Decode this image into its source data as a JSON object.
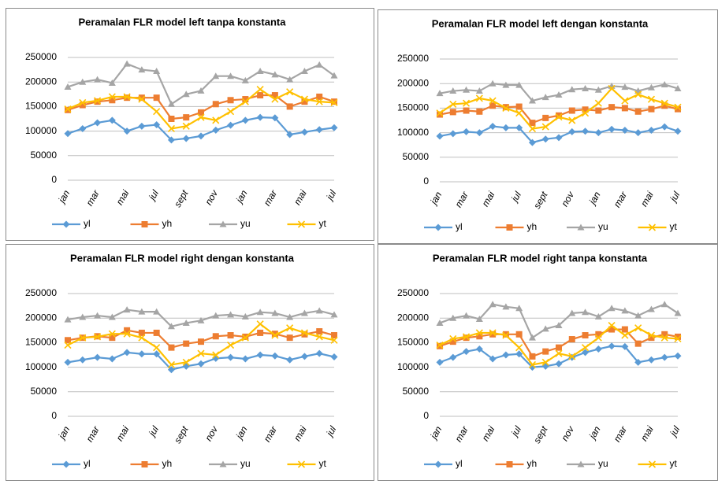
{
  "chart_data": [
    {
      "type": "line",
      "title": "Peramalan FLR model left tanpa konstanta",
      "categories": [
        "jan",
        null,
        "mar",
        null,
        "mai",
        null,
        "jul",
        null,
        "sept",
        null,
        "nov",
        null,
        "jan",
        null,
        "mar",
        null,
        "mai",
        null,
        "jul"
      ],
      "ylim": [
        0,
        250000
      ],
      "yticks": [
        0,
        50000,
        100000,
        150000,
        200000,
        250000
      ],
      "grid": true,
      "series": [
        {
          "name": "yl",
          "color": "#5b9bd5",
          "marker": "diamond",
          "values": [
            95000,
            105000,
            117000,
            122000,
            100000,
            110000,
            113000,
            82000,
            85000,
            90000,
            102000,
            112000,
            122000,
            128000,
            127000,
            93000,
            98000,
            103000,
            107000
          ]
        },
        {
          "name": "yh",
          "color": "#ed7d31",
          "marker": "square",
          "values": [
            143000,
            153000,
            160000,
            163000,
            168000,
            168000,
            168000,
            125000,
            128000,
            138000,
            155000,
            163000,
            165000,
            173000,
            173000,
            150000,
            160000,
            170000,
            160000
          ]
        },
        {
          "name": "yu",
          "color": "#a5a5a5",
          "marker": "triangle",
          "values": [
            190000,
            200000,
            205000,
            198000,
            237000,
            225000,
            222000,
            155000,
            175000,
            182000,
            212000,
            212000,
            203000,
            222000,
            215000,
            205000,
            222000,
            235000,
            213000
          ]
        },
        {
          "name": "yt",
          "color": "#ffc000",
          "marker": "cross",
          "values": [
            145000,
            158000,
            162000,
            170000,
            170000,
            165000,
            140000,
            105000,
            110000,
            128000,
            122000,
            140000,
            160000,
            185000,
            165000,
            180000,
            165000,
            160000,
            158000
          ]
        }
      ]
    },
    {
      "type": "line",
      "title": "Peramalan FLR model left dengan konstanta",
      "categories": [
        "jan",
        null,
        "mar",
        null,
        "mai",
        null,
        "jul",
        null,
        "sept",
        null,
        "nov",
        null,
        "jan",
        null,
        "mar",
        null,
        "mai",
        null,
        "jul"
      ],
      "ylim": [
        0,
        250000
      ],
      "yticks": [
        0,
        50000,
        100000,
        150000,
        200000,
        250000
      ],
      "grid": true,
      "series": [
        {
          "name": "yl",
          "color": "#5b9bd5",
          "marker": "diamond",
          "values": [
            93000,
            98000,
            102000,
            100000,
            113000,
            110000,
            110000,
            80000,
            87000,
            90000,
            102000,
            103000,
            100000,
            107000,
            105000,
            100000,
            105000,
            112000,
            103000
          ]
        },
        {
          "name": "yh",
          "color": "#ed7d31",
          "marker": "square",
          "values": [
            137000,
            142000,
            145000,
            143000,
            155000,
            152000,
            153000,
            120000,
            130000,
            135000,
            145000,
            147000,
            145000,
            152000,
            150000,
            143000,
            148000,
            155000,
            148000
          ]
        },
        {
          "name": "yu",
          "color": "#a5a5a5",
          "marker": "triangle",
          "values": [
            180000,
            185000,
            187000,
            185000,
            200000,
            197000,
            197000,
            165000,
            172000,
            177000,
            188000,
            190000,
            187000,
            195000,
            193000,
            185000,
            192000,
            198000,
            190000
          ]
        },
        {
          "name": "yt",
          "color": "#ffc000",
          "marker": "cross",
          "values": [
            140000,
            158000,
            160000,
            170000,
            165000,
            150000,
            140000,
            108000,
            112000,
            132000,
            125000,
            140000,
            160000,
            190000,
            165000,
            178000,
            168000,
            160000,
            152000
          ]
        }
      ]
    },
    {
      "type": "line",
      "title": "Peramalan FLR model right dengan konstanta",
      "categories": [
        "jan",
        null,
        "mar",
        null,
        "mai",
        null,
        "jul",
        null,
        "sept",
        null,
        "nov",
        null,
        "jan",
        null,
        "mar",
        null,
        "mai",
        null,
        "jul"
      ],
      "ylim": [
        0,
        250000
      ],
      "yticks": [
        0,
        50000,
        100000,
        150000,
        200000,
        250000
      ],
      "grid": true,
      "series": [
        {
          "name": "yl",
          "color": "#5b9bd5",
          "marker": "diamond",
          "values": [
            110000,
            115000,
            120000,
            117000,
            130000,
            127000,
            127000,
            95000,
            102000,
            107000,
            118000,
            120000,
            117000,
            125000,
            123000,
            115000,
            122000,
            128000,
            121000
          ]
        },
        {
          "name": "yh",
          "color": "#ed7d31",
          "marker": "square",
          "values": [
            155000,
            160000,
            163000,
            160000,
            175000,
            170000,
            170000,
            140000,
            148000,
            152000,
            163000,
            165000,
            162000,
            170000,
            168000,
            160000,
            167000,
            173000,
            165000
          ]
        },
        {
          "name": "yu",
          "color": "#a5a5a5",
          "marker": "triangle",
          "values": [
            197000,
            202000,
            205000,
            202000,
            217000,
            213000,
            213000,
            183000,
            190000,
            195000,
            205000,
            207000,
            203000,
            212000,
            210000,
            202000,
            210000,
            215000,
            207000
          ]
        },
        {
          "name": "yt",
          "color": "#ffc000",
          "marker": "cross",
          "values": [
            145000,
            160000,
            162000,
            168000,
            168000,
            160000,
            140000,
            105000,
            110000,
            128000,
            125000,
            145000,
            160000,
            188000,
            165000,
            180000,
            170000,
            162000,
            155000
          ]
        }
      ]
    },
    {
      "type": "line",
      "title": "Peramalan FLR model right tanpa konstanta",
      "categories": [
        "jan",
        null,
        "mar",
        null,
        "mai",
        null,
        "jul",
        null,
        "sept",
        null,
        "nov",
        null,
        "jan",
        null,
        "mar",
        null,
        "mai",
        null,
        "jul"
      ],
      "ylim": [
        0,
        250000
      ],
      "yticks": [
        0,
        50000,
        100000,
        150000,
        200000,
        250000
      ],
      "grid": true,
      "series": [
        {
          "name": "yl",
          "color": "#5b9bd5",
          "marker": "diamond",
          "values": [
            110000,
            120000,
            132000,
            137000,
            117000,
            125000,
            127000,
            100000,
            102000,
            107000,
            120000,
            130000,
            137000,
            143000,
            142000,
            110000,
            115000,
            120000,
            123000
          ]
        },
        {
          "name": "yh",
          "color": "#ed7d31",
          "marker": "square",
          "values": [
            143000,
            152000,
            160000,
            163000,
            167000,
            167000,
            167000,
            122000,
            132000,
            140000,
            157000,
            165000,
            167000,
            177000,
            177000,
            148000,
            160000,
            167000,
            162000
          ]
        },
        {
          "name": "yu",
          "color": "#a5a5a5",
          "marker": "triangle",
          "values": [
            190000,
            200000,
            205000,
            198000,
            228000,
            223000,
            220000,
            160000,
            178000,
            185000,
            210000,
            212000,
            203000,
            220000,
            215000,
            205000,
            218000,
            228000,
            210000
          ]
        },
        {
          "name": "yt",
          "color": "#ffc000",
          "marker": "cross",
          "values": [
            145000,
            158000,
            162000,
            170000,
            170000,
            165000,
            140000,
            105000,
            110000,
            128000,
            122000,
            140000,
            160000,
            185000,
            165000,
            180000,
            165000,
            160000,
            158000
          ]
        }
      ]
    }
  ]
}
